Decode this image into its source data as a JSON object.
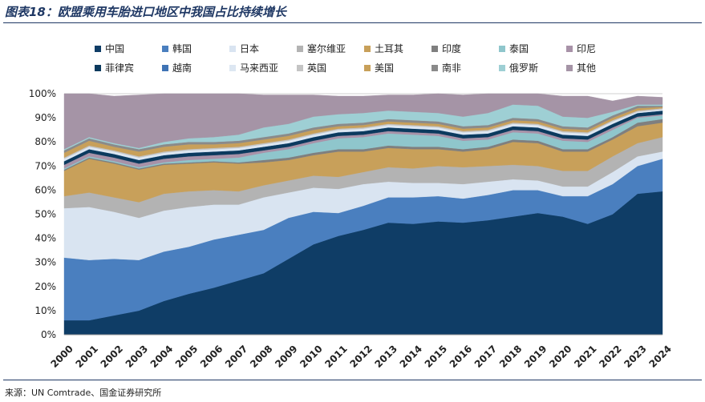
{
  "title": "图表18：欧盟乘用车胎进口地区中我国占比持续增长",
  "source": "来源：UN Comtrade、国金证券研究所",
  "chart_data": {
    "type": "area",
    "stacked": true,
    "x": [
      "2000",
      "2001",
      "2002",
      "2003",
      "2004",
      "2005",
      "2006",
      "2007",
      "2008",
      "2009",
      "2010",
      "2011",
      "2012",
      "2013",
      "2014",
      "2015",
      "2016",
      "2017",
      "2018",
      "2019",
      "2020",
      "2021",
      "2022",
      "2023",
      "2024"
    ],
    "ylim": [
      0,
      100
    ],
    "yticks": [
      "0%",
      "10%",
      "20%",
      "30%",
      "40%",
      "50%",
      "60%",
      "70%",
      "80%",
      "90%",
      "100%"
    ],
    "grid": "horizontal",
    "legend_position": "top",
    "series": [
      {
        "name": "中国",
        "color": "#0f3d66",
        "values": [
          6,
          6,
          8,
          10,
          14,
          17,
          19.5,
          22.5,
          25.5,
          31.5,
          37.5,
          41,
          43.5,
          46.5,
          46,
          47,
          46.5,
          47.5,
          49,
          50.5,
          49,
          46,
          50,
          58.5,
          59.5
        ]
      },
      {
        "name": "韩国",
        "color": "#4a7fbf",
        "values": [
          26,
          25,
          23.5,
          21,
          20.5,
          19.5,
          20,
          19,
          18,
          17,
          13.5,
          9.5,
          10,
          10.5,
          11,
          10.5,
          10,
          10.5,
          11,
          9.5,
          8.5,
          11.5,
          12.5,
          11.5,
          13.5
        ]
      },
      {
        "name": "日本",
        "color": "#d9e4f1",
        "values": [
          20.5,
          22,
          19.5,
          17.5,
          17,
          16.5,
          14.5,
          12.5,
          13.5,
          10.5,
          10,
          10,
          9,
          6.5,
          6,
          5.5,
          6,
          5.5,
          4.5,
          4,
          4,
          4,
          5,
          4,
          3
        ]
      },
      {
        "name": "塞尔维亚",
        "color": "#b3b3b3",
        "values": [
          5,
          6,
          6,
          6.5,
          7,
          6.5,
          6,
          5.5,
          5,
          5,
          5,
          5,
          5,
          6,
          6,
          7,
          7,
          6.5,
          6,
          6,
          6.5,
          6.5,
          6.5,
          5.5,
          6
        ]
      },
      {
        "name": "土耳其",
        "color": "#c8a05a",
        "values": [
          10.5,
          14,
          14,
          13.5,
          12,
          11.5,
          11.5,
          11.5,
          9.5,
          8.5,
          8.5,
          10.5,
          8.5,
          8,
          8,
          7,
          6.5,
          7,
          9.5,
          9.5,
          8,
          8,
          7,
          7,
          6
        ]
      },
      {
        "name": "印度",
        "color": "#7f7f7f",
        "values": [
          0.5,
          0.5,
          0.5,
          0.5,
          0.5,
          0.5,
          0.5,
          0.5,
          1,
          1,
          1,
          1,
          1,
          1,
          1,
          1,
          1,
          1,
          1,
          1,
          1,
          1,
          1,
          1.5,
          1.5
        ]
      },
      {
        "name": "泰国",
        "color": "#8fc6cc",
        "values": [
          0.5,
          0.5,
          0.5,
          0.5,
          0.5,
          1,
          1,
          2,
          3,
          3.5,
          4,
          4.5,
          5,
          5,
          5,
          4.5,
          3.5,
          3,
          3,
          3,
          3.5,
          3,
          3,
          2,
          1.5
        ]
      },
      {
        "name": "印尼",
        "color": "#a892a8",
        "values": [
          1.5,
          1.5,
          1.5,
          1.5,
          1.5,
          1.5,
          1.5,
          1.5,
          1,
          1,
          1,
          1,
          1,
          1,
          1,
          1,
          1,
          1,
          1,
          1,
          1,
          1,
          1,
          0.5,
          0.5
        ]
      },
      {
        "name": "菲律宾",
        "color": "#0b3a5e",
        "values": [
          1.5,
          1.5,
          1.5,
          1.5,
          1.5,
          1.5,
          1.5,
          1.5,
          1.5,
          1.5,
          1.5,
          1.5,
          1.5,
          1.5,
          1.5,
          1.5,
          1.5,
          1.5,
          1.5,
          1.5,
          1.5,
          1.5,
          1.5,
          1.5,
          1.5
        ]
      },
      {
        "name": "越南",
        "color": "#3f74b5",
        "values": [
          0,
          0,
          0,
          0,
          0,
          0,
          0,
          0,
          0,
          0,
          0,
          0,
          0,
          0,
          0,
          0,
          0,
          0,
          0,
          0,
          0,
          0,
          0,
          0,
          0
        ]
      },
      {
        "name": "马来西亚",
        "color": "#dde7f2",
        "values": [
          1,
          1,
          1,
          1,
          1,
          1,
          1,
          1,
          1,
          1,
          1,
          1,
          1,
          1,
          1,
          1,
          1,
          1,
          1,
          1,
          1,
          1,
          1,
          0.5,
          0.5
        ]
      },
      {
        "name": "英国",
        "color": "#c4c4c4",
        "values": [
          0.5,
          0.5,
          0.5,
          0.5,
          0.5,
          0.5,
          0.5,
          0.5,
          0.5,
          0.5,
          0.5,
          0.5,
          0.5,
          0.5,
          0.5,
          0.5,
          0.5,
          0.5,
          0.5,
          0.5,
          0.5,
          0.5,
          0.5,
          0.5,
          0.5
        ]
      },
      {
        "name": "美国",
        "color": "#c8a05a",
        "values": [
          2,
          2,
          1.5,
          2,
          2,
          2,
          1.5,
          1.5,
          1.5,
          1.5,
          1.5,
          1,
          1,
          1,
          1,
          1,
          1,
          1,
          1,
          1,
          1,
          1,
          1,
          1,
          0.5
        ]
      },
      {
        "name": "南非",
        "color": "#8a8a8a",
        "values": [
          1,
          1,
          1,
          1,
          1,
          1,
          1,
          1,
          1,
          1,
          1,
          1,
          1,
          1,
          1,
          1,
          1,
          1,
          1,
          1,
          1,
          1,
          1,
          1,
          0.5
        ]
      },
      {
        "name": "俄罗斯",
        "color": "#9ecfd4",
        "values": [
          0.5,
          0.5,
          0.5,
          0.5,
          1,
          1.5,
          2,
          2.5,
          4,
          4,
          4.5,
          4,
          4,
          3.5,
          3.5,
          3.5,
          4,
          5,
          5.5,
          5.5,
          4,
          4,
          1.5,
          0.5,
          0.5
        ]
      },
      {
        "name": "其他",
        "color": "#a594a6",
        "values": [
          23,
          18,
          19.5,
          22,
          20,
          19,
          18,
          17,
          13.5,
          12,
          9,
          7.5,
          7,
          6.5,
          7,
          8,
          9,
          8,
          6,
          6.5,
          8.5,
          9,
          4.5,
          3.5,
          3
        ]
      }
    ]
  }
}
